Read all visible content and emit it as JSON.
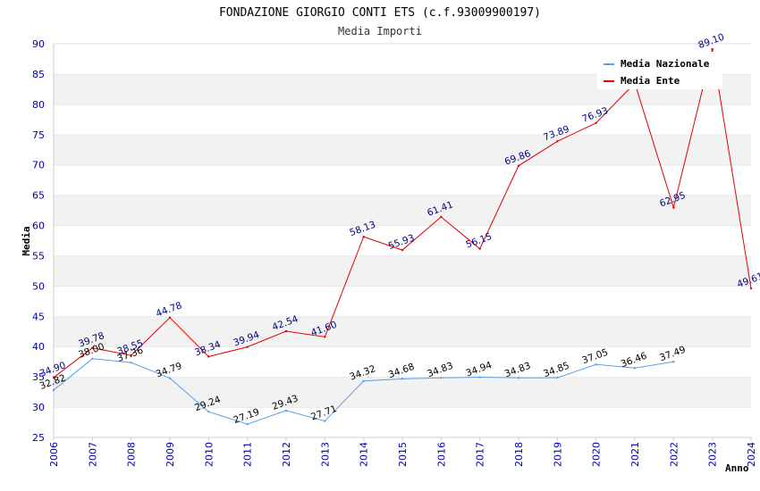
{
  "chart_data": {
    "type": "line",
    "title": "FONDAZIONE GIORGIO CONTI ETS (c.f.93009900197)",
    "subtitle": "Media Importi",
    "xlabel": "Anno",
    "ylabel": "Media",
    "ylim": [
      25,
      90
    ],
    "yticks": [
      25,
      30,
      35,
      40,
      45,
      50,
      55,
      60,
      65,
      70,
      75,
      80,
      85,
      90
    ],
    "categories": [
      "2006",
      "2007",
      "2008",
      "2009",
      "2010",
      "2011",
      "2012",
      "2013",
      "2014",
      "2015",
      "2016",
      "2017",
      "2018",
      "2019",
      "2020",
      "2021",
      "2022",
      "2023",
      "2024"
    ],
    "grid": "horizontal alternating bands",
    "legend_position": "top-right",
    "series": [
      {
        "name": "Media Nazionale",
        "color": "#5aa0e6",
        "values": [
          32.82,
          38.0,
          37.36,
          34.79,
          29.24,
          27.19,
          29.43,
          27.71,
          34.32,
          34.68,
          34.83,
          34.94,
          34.83,
          34.85,
          37.05,
          36.46,
          37.49,
          null,
          null
        ],
        "labels": [
          "32.82",
          "38.00",
          "37.36",
          "34.79",
          "29.24",
          "27.19",
          "29.43",
          "27.71",
          "34.32",
          "34.68",
          "34.83",
          "34.94",
          "34.83",
          "34.85",
          "37.05",
          "36.46",
          "37.49",
          null,
          null
        ]
      },
      {
        "name": "Media Ente",
        "color": "#e00000",
        "values": [
          34.9,
          39.78,
          38.55,
          44.78,
          38.34,
          39.94,
          42.54,
          41.6,
          58.13,
          55.93,
          61.41,
          56.15,
          69.86,
          73.89,
          76.93,
          83.5,
          62.95,
          89.1,
          49.61
        ],
        "labels": [
          "34.90",
          "39.78",
          "38.55",
          "44.78",
          "38.34",
          "39.94",
          "42.54",
          "41.60",
          "58.13",
          "55.93",
          "61.41",
          "56.15",
          "69.86",
          "73.89",
          "76.93",
          null,
          "62.95",
          "89.10",
          "49.61"
        ]
      }
    ]
  }
}
